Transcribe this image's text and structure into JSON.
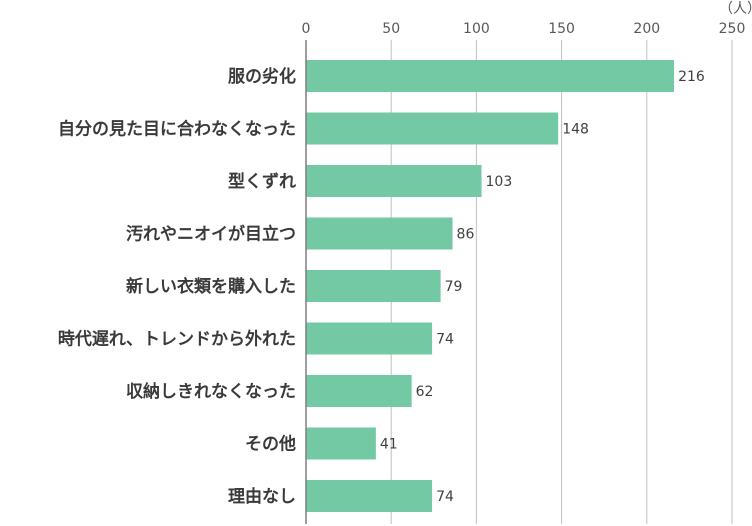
{
  "chart_data": {
    "type": "bar",
    "orientation": "horizontal",
    "unit": "（人）",
    "xlim": [
      0,
      250
    ],
    "ticks": [
      "0",
      "50",
      "100",
      "150",
      "200",
      "250"
    ],
    "tick_values": [
      0,
      50,
      100,
      150,
      200,
      250
    ],
    "grid": true,
    "bar_color": "#72c9a3",
    "categories": [
      "服の劣化",
      "自分の見た目に合わなくなった",
      "型くずれ",
      "汚れやニオイが目立つ",
      "新しい衣類を購入した",
      "時代遅れ、トレンドから外れた",
      "収納しきれなくなった",
      "その他",
      "理由なし"
    ],
    "values": [
      216,
      148,
      103,
      86,
      79,
      74,
      62,
      41,
      74
    ]
  }
}
